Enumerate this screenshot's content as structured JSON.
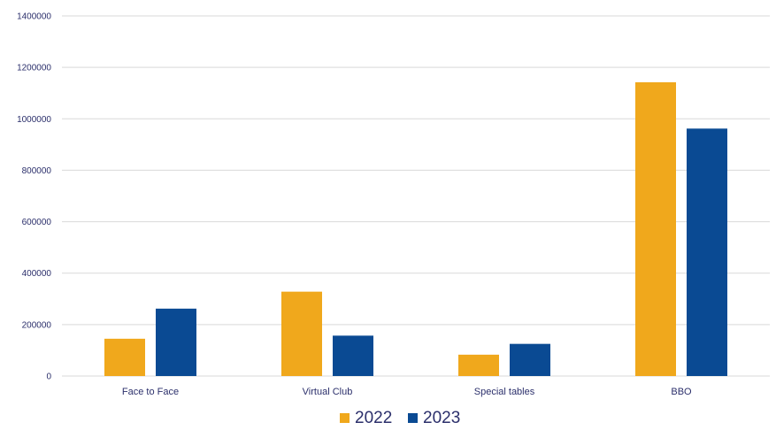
{
  "chart_data": {
    "type": "bar",
    "categories": [
      "Face to Face",
      "Virtual Club",
      "Special tables",
      "BBO"
    ],
    "series": [
      {
        "name": "2022",
        "color": "#F0A81C",
        "values": [
          145000,
          328000,
          83000,
          1142000
        ]
      },
      {
        "name": "2023",
        "color": "#0A4A93",
        "values": [
          262000,
          157000,
          125000,
          962000
        ]
      }
    ],
    "yticks": [
      "0",
      "200000",
      "400000",
      "600000",
      "800000",
      "1000000",
      "1200000",
      "1400000"
    ],
    "ylim": [
      0,
      1400000
    ],
    "grid": true,
    "legend_position": "bottom-center"
  }
}
